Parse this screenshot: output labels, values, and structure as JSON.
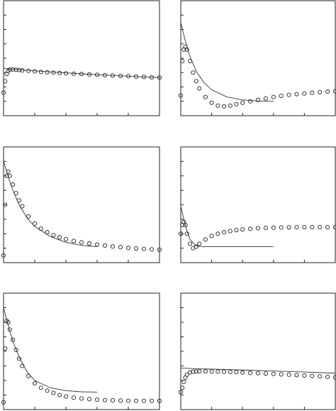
{
  "chart_data": [
    {
      "type": "line",
      "xlim": [
        0,
        5
      ],
      "ylim": [
        0,
        8
      ],
      "xticks": [
        0,
        1,
        2,
        3,
        4,
        5
      ],
      "yticks": [
        0,
        1,
        2,
        3,
        4,
        5,
        6,
        7,
        8
      ],
      "series": [
        {
          "marker": "circle",
          "color": "#222222",
          "x": [
            0,
            0.05,
            0.1,
            0.15,
            0.2,
            0.3,
            0.4,
            0.5,
            0.6,
            0.8,
            1,
            1.2,
            1.4,
            1.6,
            1.8,
            2,
            2.25,
            2.5,
            2.75,
            3,
            3.25,
            3.5,
            3.75,
            4,
            4.25,
            4.5,
            4.75,
            5
          ],
          "values": [
            1.6,
            2.4,
            2.9,
            3.1,
            3.2,
            3.22,
            3.2,
            3.18,
            3.15,
            3.12,
            3.08,
            3.05,
            3.02,
            3.0,
            2.97,
            2.95,
            2.92,
            2.9,
            2.87,
            2.85,
            2.82,
            2.8,
            2.77,
            2.75,
            2.72,
            2.7,
            2.67,
            2.65
          ]
        },
        {
          "marker": "none",
          "color": "#333333",
          "x": [
            0,
            0.25,
            0.5,
            1,
            2,
            3,
            4,
            5
          ],
          "values": [
            3.3,
            3.25,
            3.2,
            3.12,
            2.98,
            2.85,
            2.75,
            2.65
          ]
        }
      ]
    },
    {
      "type": "line",
      "xlim": [
        0,
        5
      ],
      "ylim": [
        0,
        8
      ],
      "xticks": [
        0,
        1,
        2,
        3,
        4,
        5
      ],
      "yticks": [
        0,
        1,
        2,
        3,
        4,
        5,
        6,
        7,
        8
      ],
      "series": [
        {
          "marker": "circle",
          "color": "#222222",
          "x": [
            0,
            0.05,
            0.1,
            0.15,
            0.2,
            0.3,
            0.4,
            0.5,
            0.6,
            0.8,
            1,
            1.2,
            1.4,
            1.6,
            1.8,
            2,
            2.25,
            2.5,
            2.75,
            3,
            3.25,
            3.5,
            3.75,
            4,
            4.25,
            4.5,
            4.75,
            5
          ],
          "values": [
            1.4,
            3.8,
            4.6,
            4.8,
            4.6,
            3.8,
            3.0,
            2.4,
            1.9,
            1.3,
            0.9,
            0.7,
            0.65,
            0.7,
            0.8,
            0.9,
            1.0,
            1.1,
            1.2,
            1.3,
            1.38,
            1.45,
            1.5,
            1.55,
            1.6,
            1.64,
            1.68,
            1.7
          ]
        },
        {
          "marker": "none",
          "color": "#333333",
          "x": [
            0,
            0.1,
            0.2,
            0.3,
            0.5,
            0.75,
            1,
            1.5,
            2,
            2.5,
            3
          ],
          "values": [
            6.5,
            5.6,
            4.8,
            4.1,
            3.1,
            2.3,
            1.8,
            1.3,
            1.1,
            1.02,
            1.0
          ]
        }
      ]
    },
    {
      "type": "line",
      "xlim": [
        0,
        5
      ],
      "ylim": [
        0,
        8
      ],
      "xticks": [
        0,
        1,
        2,
        3,
        4,
        5
      ],
      "yticks": [
        0,
        1,
        2,
        3,
        4,
        5,
        6,
        7,
        8
      ],
      "series": [
        {
          "marker": "circle",
          "color": "#222222",
          "x": [
            0,
            0.05,
            0.1,
            0.15,
            0.2,
            0.3,
            0.4,
            0.5,
            0.6,
            0.8,
            1,
            1.2,
            1.4,
            1.6,
            1.8,
            2,
            2.25,
            2.5,
            2.75,
            3,
            3.25,
            3.5,
            3.75,
            4,
            4.25,
            4.5,
            4.75,
            5
          ],
          "values": [
            0.5,
            4.0,
            6.0,
            6.3,
            6.0,
            5.4,
            4.8,
            4.3,
            3.9,
            3.2,
            2.7,
            2.35,
            2.1,
            1.9,
            1.75,
            1.62,
            1.5,
            1.4,
            1.32,
            1.25,
            1.18,
            1.12,
            1.07,
            1.02,
            0.98,
            0.95,
            0.92,
            0.9
          ]
        },
        {
          "marker": "none",
          "color": "#333333",
          "x": [
            0,
            0.1,
            0.2,
            0.3,
            0.5,
            0.75,
            1,
            1.5,
            2,
            2.5,
            3
          ],
          "values": [
            7,
            6.3,
            5.6,
            5.0,
            4.0,
            3.1,
            2.5,
            1.8,
            1.4,
            1.2,
            1.1
          ]
        }
      ]
    },
    {
      "type": "line",
      "xlim": [
        0,
        5
      ],
      "ylim": [
        0,
        8
      ],
      "xticks": [
        0,
        1,
        2,
        3,
        4,
        5
      ],
      "yticks": [
        0,
        1,
        2,
        3,
        4,
        5,
        6,
        7,
        8
      ],
      "series": [
        {
          "marker": "circle",
          "color": "#222222",
          "x": [
            0,
            0.05,
            0.1,
            0.15,
            0.2,
            0.3,
            0.4,
            0.5,
            0.6,
            0.8,
            1,
            1.2,
            1.4,
            1.6,
            1.8,
            2,
            2.25,
            2.5,
            2.75,
            3,
            3.25,
            3.5,
            3.75,
            4,
            4.25,
            4.5,
            4.75,
            5
          ],
          "values": [
            2.0,
            2.6,
            2.8,
            2.6,
            2.0,
            1.3,
            1.0,
            1.1,
            1.3,
            1.6,
            1.85,
            2.0,
            2.1,
            2.18,
            2.25,
            2.3,
            2.34,
            2.38,
            2.4,
            2.42,
            2.43,
            2.44,
            2.45,
            2.45,
            2.45,
            2.45,
            2.45,
            2.45
          ]
        },
        {
          "marker": "none",
          "color": "#333333",
          "x": [
            0,
            0.1,
            0.2,
            0.3,
            0.5,
            0.75,
            1,
            1.5,
            2,
            2.5,
            3
          ],
          "values": [
            3.9,
            3.0,
            2.2,
            1.6,
            1.15,
            1.1,
            1.1,
            1.1,
            1.1,
            1.1,
            1.1
          ]
        }
      ]
    },
    {
      "type": "line",
      "xlim": [
        0,
        5
      ],
      "ylim": [
        0,
        8
      ],
      "xticks": [
        0,
        1,
        2,
        3,
        4,
        5
      ],
      "yticks": [
        0,
        1,
        2,
        3,
        4,
        5,
        6,
        7,
        8
      ],
      "series": [
        {
          "marker": "circle",
          "color": "#222222",
          "x": [
            0,
            0.05,
            0.1,
            0.15,
            0.2,
            0.3,
            0.4,
            0.5,
            0.6,
            0.8,
            1,
            1.2,
            1.4,
            1.6,
            1.8,
            2,
            2.25,
            2.5,
            2.75,
            3,
            3.25,
            3.5,
            3.75,
            4,
            4.25,
            4.5,
            4.75,
            5
          ],
          "values": [
            0.5,
            4.2,
            6.1,
            6.0,
            5.5,
            4.8,
            4.1,
            3.5,
            3.0,
            2.3,
            1.8,
            1.5,
            1.3,
            1.15,
            1.0,
            0.9,
            0.82,
            0.76,
            0.72,
            0.68,
            0.65,
            0.63,
            0.62,
            0.61,
            0.6,
            0.6,
            0.6,
            0.6
          ]
        },
        {
          "marker": "none",
          "color": "#333333",
          "x": [
            0,
            0.1,
            0.2,
            0.3,
            0.5,
            0.75,
            1,
            1.5,
            2,
            2.5,
            3
          ],
          "values": [
            7,
            6.2,
            5.4,
            4.7,
            3.6,
            2.6,
            2.0,
            1.5,
            1.3,
            1.22,
            1.2
          ]
        }
      ]
    },
    {
      "type": "line",
      "xlim": [
        0,
        5
      ],
      "ylim": [
        0,
        8
      ],
      "xticks": [
        0,
        1,
        2,
        3,
        4,
        5
      ],
      "yticks": [
        0,
        1,
        2,
        3,
        4,
        5,
        6,
        7,
        8
      ],
      "series": [
        {
          "marker": "circle",
          "color": "#222222",
          "x": [
            0,
            0.05,
            0.1,
            0.15,
            0.2,
            0.3,
            0.4,
            0.5,
            0.6,
            0.8,
            1,
            1.2,
            1.4,
            1.6,
            1.8,
            2,
            2.25,
            2.5,
            2.75,
            3,
            3.25,
            3.5,
            3.75,
            4,
            4.25,
            4.5,
            4.75,
            5
          ],
          "values": [
            1.2,
            1.5,
            1.9,
            2.2,
            2.4,
            2.55,
            2.6,
            2.62,
            2.63,
            2.63,
            2.62,
            2.61,
            2.6,
            2.59,
            2.57,
            2.55,
            2.52,
            2.5,
            2.48,
            2.45,
            2.42,
            2.4,
            2.37,
            2.34,
            2.31,
            2.28,
            2.25,
            2.22
          ]
        },
        {
          "marker": "none",
          "color": "#333333",
          "x": [
            0,
            0.25,
            0.5,
            1,
            2,
            3,
            4,
            5
          ],
          "values": [
            2.85,
            2.83,
            2.8,
            2.78,
            2.72,
            2.65,
            2.58,
            2.5
          ]
        }
      ]
    }
  ]
}
